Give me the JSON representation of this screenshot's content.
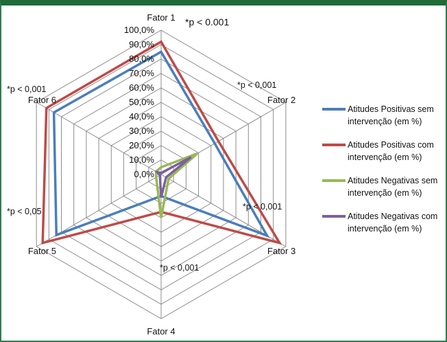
{
  "chart_data": {
    "type": "radar",
    "axes": [
      "Fator 1",
      "Fator 2",
      "Fator 3",
      "Fator 4",
      "Fator 5",
      "Fator 6"
    ],
    "scale_ticks": [
      "0,0%",
      "10,0%",
      "20,0%",
      "30,0%",
      "40,0%",
      "50,0%",
      "60,0%",
      "70,0%",
      "80,0%",
      "90,0%",
      "100,0%"
    ],
    "range": [
      0,
      100
    ],
    "grid": true,
    "legend_position": "right",
    "series": [
      {
        "name": "Atitudes Positivas  sem intervenção (em %)",
        "color": "#4a7ebb",
        "values": [
          85,
          43,
          85,
          15,
          84,
          86
        ]
      },
      {
        "name": "Atitudes Positivas com intervenção (em %)",
        "color": "#be4b48",
        "values": [
          92,
          46,
          95,
          26,
          95,
          92
        ]
      },
      {
        "name": "Atitudes Negativas  sem intervenção (em %)",
        "color": "#98b954",
        "values": [
          5,
          29,
          6,
          30,
          4,
          4
        ]
      },
      {
        "name": "Atitudes Negativas com intervenção (em %)",
        "color": "#7d60a0",
        "values": [
          1,
          24,
          4,
          16,
          1,
          3
        ]
      }
    ],
    "annotations": [
      "*p < 0.001",
      "*p < 0,001",
      "*p < 0,001",
      "*p < 0,001",
      "*p < 0,05",
      "*p < 0,001"
    ]
  }
}
